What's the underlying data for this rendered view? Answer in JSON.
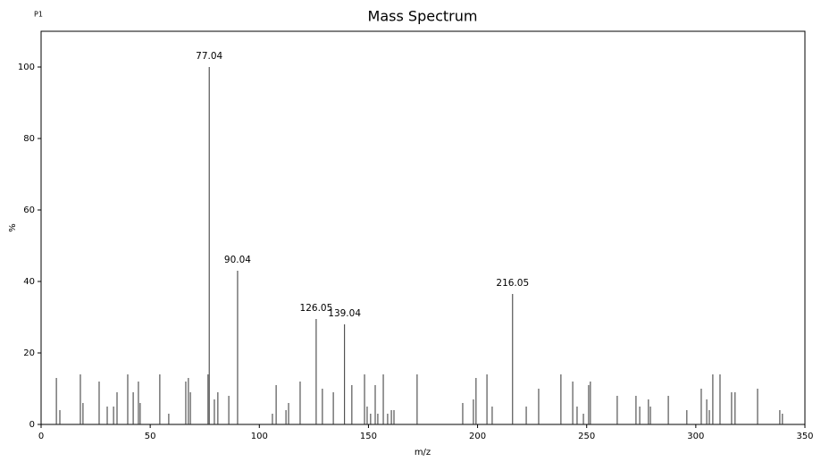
{
  "chart_data": {
    "type": "stem",
    "title": "Mass Spectrum",
    "corner_text": "P1",
    "xlabel": "m/z",
    "ylabel": "%",
    "x": [
      7.0,
      8.6,
      18.0,
      19.2,
      26.6,
      30.3,
      33.2,
      34.8,
      39.7,
      42.2,
      44.6,
      45.4,
      54.4,
      58.5,
      66.3,
      67.5,
      68.4,
      76.5,
      77.04,
      79.4,
      81.0,
      86.0,
      90.04,
      106.0,
      107.7,
      112.2,
      113.4,
      118.7,
      126.05,
      128.9,
      133.9,
      139.04,
      142.4,
      148.2,
      149.4,
      151.0,
      153.1,
      154.3,
      156.8,
      158.8,
      160.5,
      161.7,
      172.3,
      193.2,
      198.1,
      199.3,
      204.3,
      206.7,
      216.05,
      222.3,
      228.0,
      238.2,
      243.6,
      245.6,
      248.5,
      250.9,
      251.7,
      264.0,
      272.6,
      274.3,
      278.3,
      279.2,
      287.4,
      295.9,
      302.5,
      305.0,
      306.2,
      307.8,
      311.1,
      316.4,
      318.0,
      328.3,
      338.5,
      339.7
    ],
    "values": [
      13,
      4,
      14,
      6,
      12,
      5,
      5,
      9,
      14,
      9,
      12,
      6,
      14,
      3,
      12,
      13,
      9,
      14,
      100,
      7,
      9,
      8,
      43,
      3,
      11,
      4,
      6,
      12,
      29.5,
      10,
      9,
      28,
      11,
      14,
      5,
      3,
      11,
      3,
      14,
      3,
      4,
      4,
      14,
      6,
      7,
      13,
      14,
      5,
      36.5,
      5,
      10,
      14,
      12,
      5,
      3,
      11,
      12,
      8,
      8,
      5,
      7,
      5,
      8,
      4,
      10,
      7,
      4,
      14,
      14,
      9,
      9,
      10,
      4,
      3
    ],
    "labels": [
      null,
      null,
      null,
      null,
      null,
      null,
      null,
      null,
      null,
      null,
      null,
      null,
      null,
      null,
      null,
      null,
      null,
      null,
      "77.04",
      null,
      null,
      null,
      "90.04",
      null,
      null,
      null,
      null,
      null,
      "126.05",
      null,
      null,
      "139.04",
      null,
      null,
      null,
      null,
      null,
      null,
      null,
      null,
      null,
      null,
      null,
      null,
      null,
      null,
      null,
      null,
      "216.05",
      null,
      null,
      null,
      null,
      null,
      null,
      null,
      null,
      null,
      null,
      null,
      null,
      null,
      null,
      null,
      null,
      null,
      null,
      null,
      null,
      null,
      null,
      null,
      null,
      null
    ],
    "color": "#333333",
    "xlim": [
      0,
      350
    ],
    "xticks": [
      0,
      50,
      100,
      150,
      200,
      250,
      300,
      350
    ],
    "ylim": [
      0,
      110
    ],
    "yticks": [
      0,
      20,
      40,
      60,
      80,
      100
    ],
    "grid": false
  }
}
